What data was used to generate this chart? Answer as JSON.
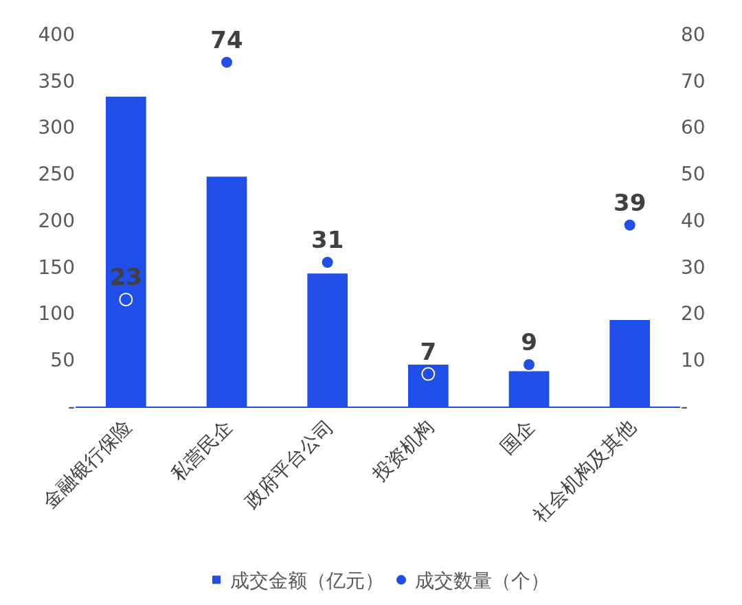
{
  "chart_data": {
    "type": "bar",
    "categories": [
      "金融银行保险",
      "私营民企",
      "政府平台公司",
      "投资机构",
      "国企",
      "社会机构及其他"
    ],
    "series": [
      {
        "name": "成交金额（亿元）",
        "color": "#1f4fe8",
        "values": [
          333,
          247,
          143,
          45,
          38,
          93
        ]
      },
      {
        "name": "成交数量（个）",
        "type": "scatter",
        "axis": "y2",
        "color": "#1f4fe8",
        "values": [
          23,
          74,
          31,
          7,
          9,
          39
        ],
        "data_labels": true
      }
    ],
    "ylim": [
      0,
      400
    ],
    "yticks": [
      {
        "value": 0,
        "label": "-"
      },
      50,
      100,
      150,
      200,
      250,
      300,
      350,
      400
    ],
    "y2lim": [
      0,
      80
    ],
    "y2ticks": [
      {
        "value": 0,
        "label": "-"
      },
      10,
      20,
      30,
      40,
      50,
      60,
      70,
      80
    ],
    "grid": false,
    "legend": "bottom",
    "marker": "circle"
  }
}
